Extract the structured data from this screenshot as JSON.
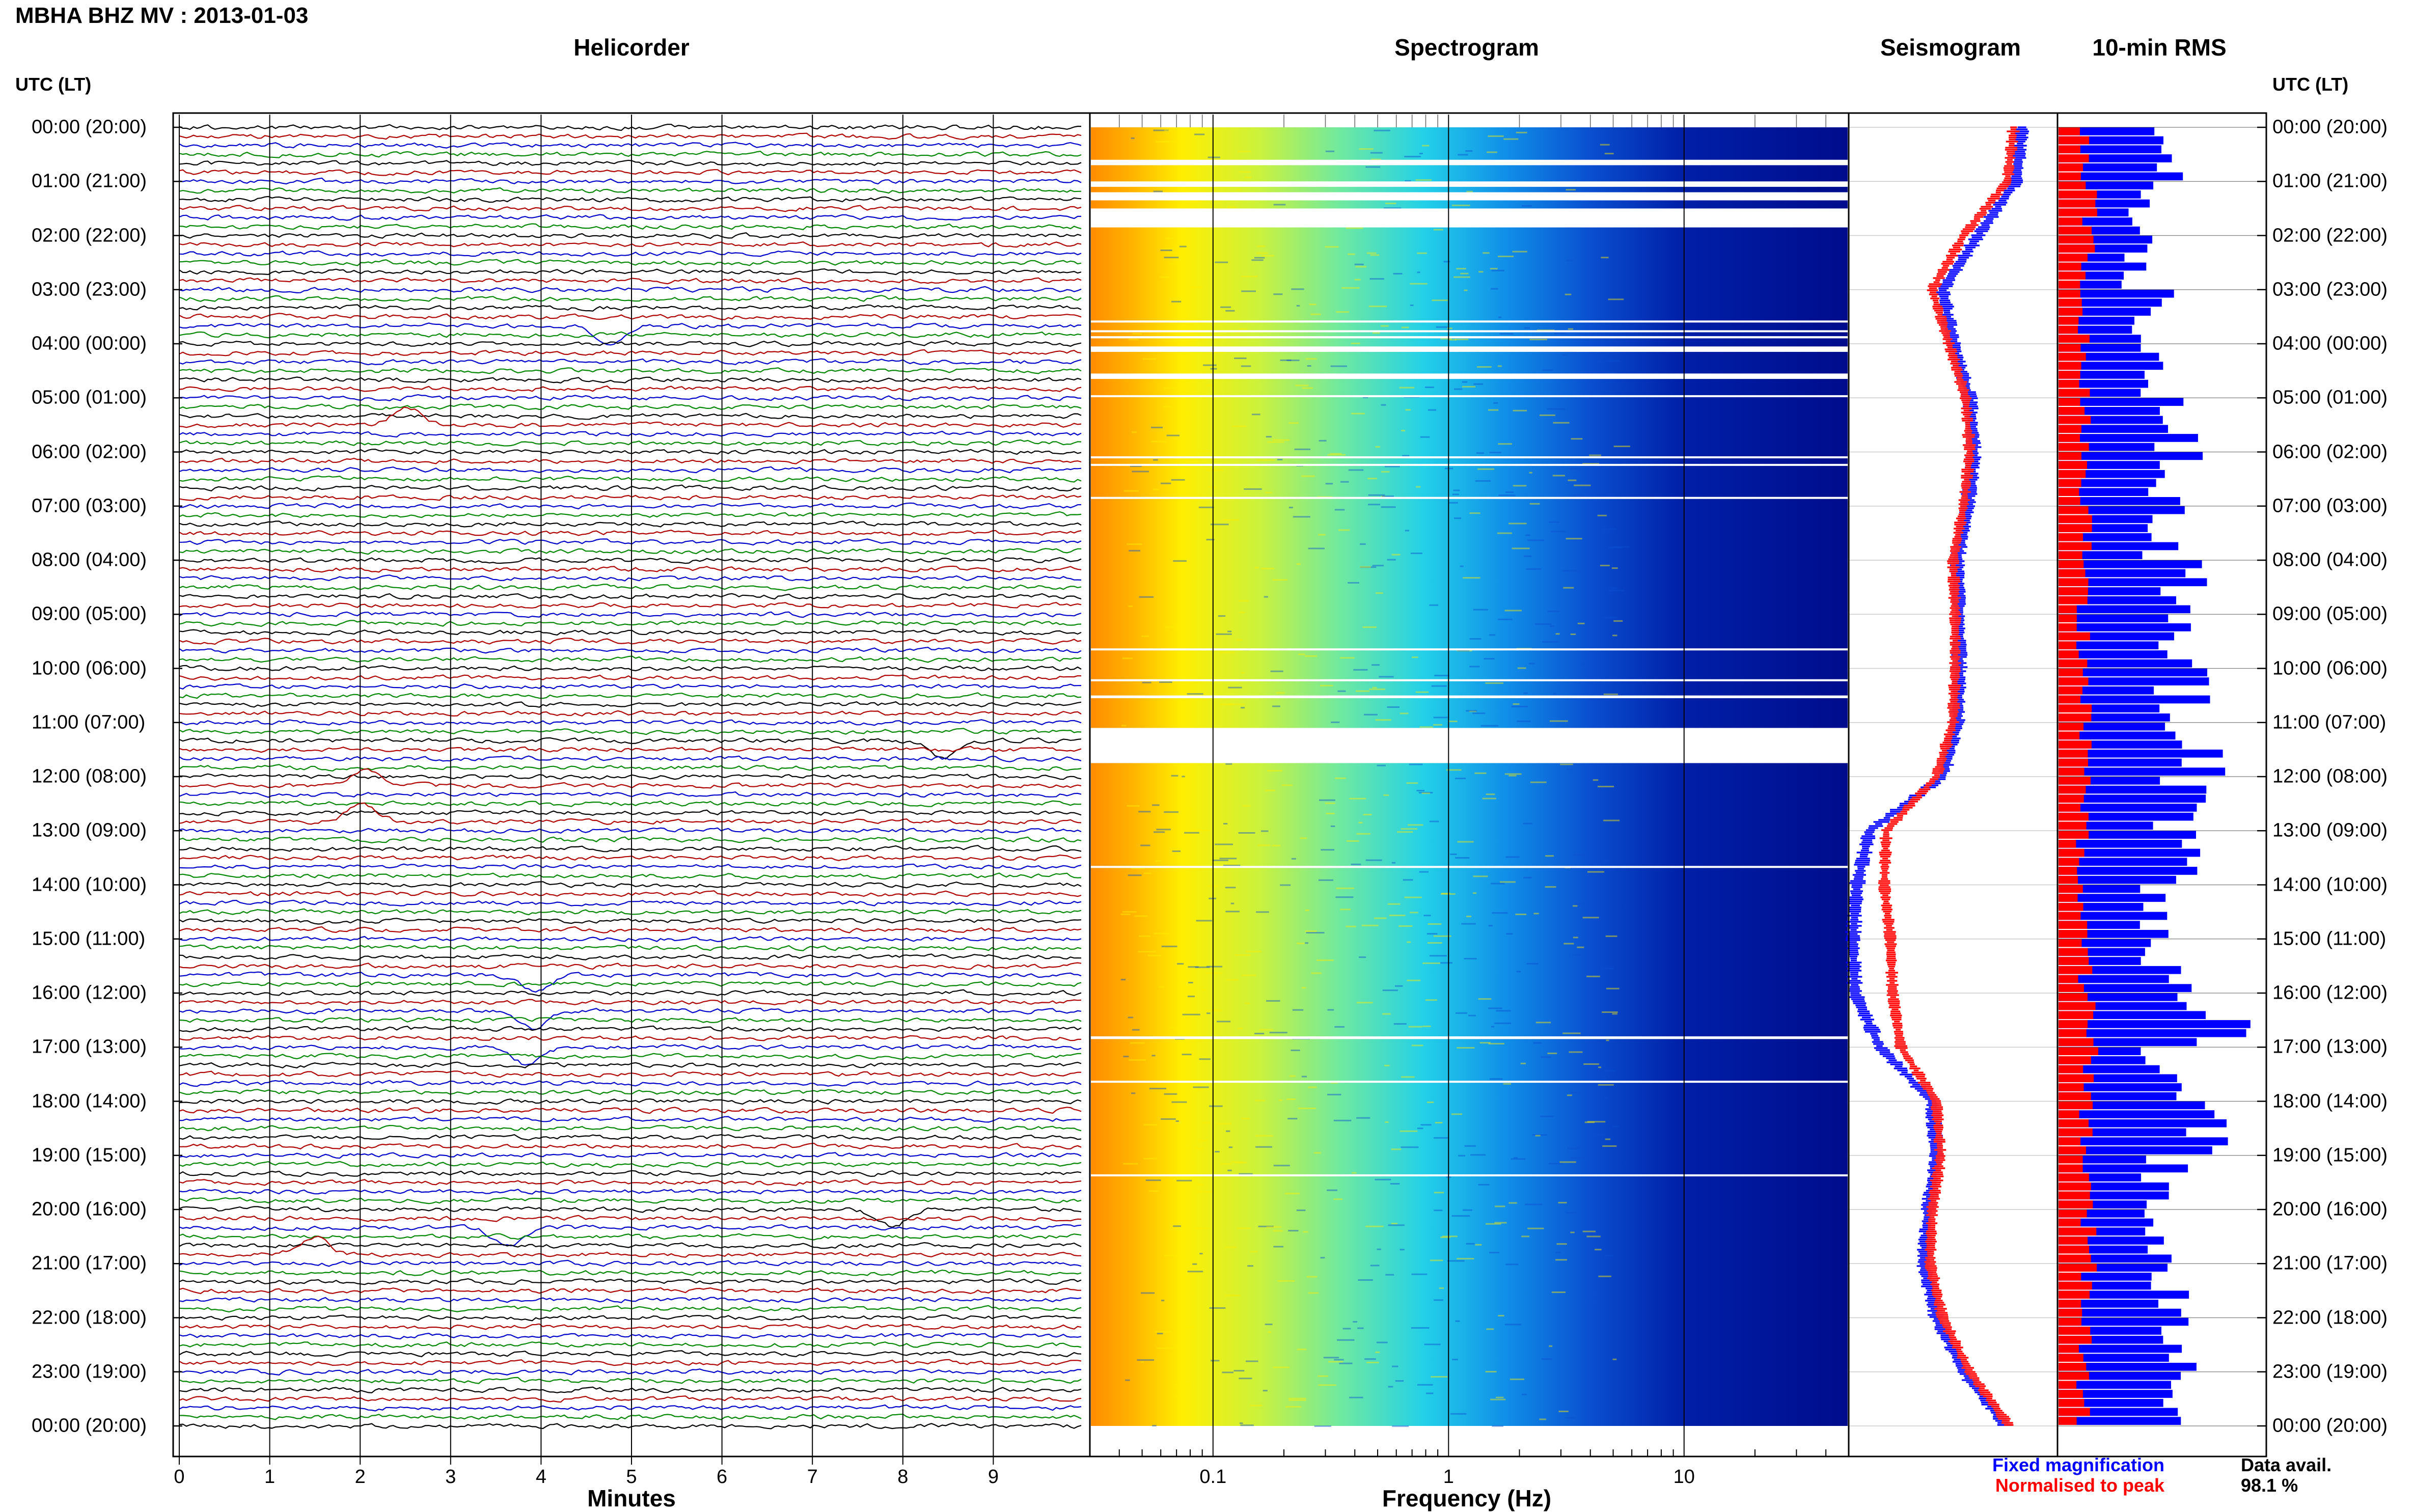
{
  "header": {
    "title": "MBHA BHZ MV : 2013-01-03"
  },
  "panels": {
    "helicorder": "Helicorder",
    "spectrogram": "Spectrogram",
    "seismogram": "Seismogram",
    "rms": "10-min RMS"
  },
  "axes": {
    "time_caption": "UTC (LT)",
    "minutes_label": "Minutes",
    "frequency_label": "Frequency (Hz)"
  },
  "legend": {
    "fixed": "Fixed magnification",
    "normalised": "Normalised to peak",
    "avail_label": "Data avail.",
    "avail_value": "98.1 %"
  },
  "colors": {
    "fixed": "#0000ff",
    "normalised": "#ff0000",
    "trace_cycle": [
      "#000000",
      "#b00000",
      "#0000cc",
      "#008800"
    ]
  },
  "chart_data": [
    {
      "type": "line",
      "title": "Helicorder",
      "xlabel": "Minutes",
      "x_ticks": [
        "0",
        "1",
        "2",
        "3",
        "4",
        "5",
        "6",
        "7",
        "8",
        "9"
      ],
      "xlim": [
        0,
        10
      ],
      "y_ticks": [
        "00:00 (20:00)",
        "01:00 (21:00)",
        "02:00 (22:00)",
        "03:00 (23:00)",
        "04:00 (00:00)",
        "05:00 (01:00)",
        "06:00 (02:00)",
        "07:00 (03:00)",
        "08:00 (04:00)",
        "09:00 (05:00)",
        "10:00 (06:00)",
        "11:00 (07:00)",
        "12:00 (08:00)",
        "13:00 (09:00)",
        "14:00 (10:00)",
        "15:00 (11:00)",
        "16:00 (12:00)",
        "17:00 (13:00)",
        "18:00 (14:00)",
        "19:00 (15:00)",
        "20:00 (16:00)",
        "21:00 (17:00)",
        "22:00 (18:00)",
        "23:00 (19:00)",
        "00:00 (20:00)"
      ],
      "traces_per_hour": 6,
      "events_hours": [
        3.7,
        5.5,
        11.3,
        12.1,
        12.8,
        15.6,
        16.4,
        17.0,
        20.0,
        20.4,
        20.9
      ]
    },
    {
      "type": "heatmap",
      "title": "Spectrogram",
      "xlabel": "Frequency (Hz)",
      "x_ticks": [
        "0.1",
        "1",
        "10"
      ],
      "xlim": [
        0.03,
        50
      ],
      "x_scale": "log",
      "gap_hours": [
        [
          0.6,
          0.7
        ],
        [
          1.0,
          1.1
        ],
        [
          1.2,
          1.35
        ],
        [
          1.5,
          1.85
        ],
        [
          3.57,
          3.6
        ],
        [
          3.75,
          3.78
        ],
        [
          3.86,
          3.9
        ],
        [
          4.05,
          4.15
        ],
        [
          4.55,
          4.65
        ],
        [
          4.95,
          4.97
        ],
        [
          6.08,
          6.1
        ],
        [
          6.22,
          6.24
        ],
        [
          6.83,
          6.85
        ],
        [
          9.63,
          9.66
        ],
        [
          10.2,
          10.23
        ],
        [
          10.5,
          10.55
        ],
        [
          11.1,
          11.75
        ],
        [
          13.65,
          13.68
        ],
        [
          16.8,
          16.85
        ],
        [
          17.62,
          17.65
        ],
        [
          19.35,
          19.38
        ]
      ]
    },
    {
      "type": "line",
      "title": "Seismogram",
      "series": [
        {
          "name": "Fixed magnification",
          "values": [
            0.83,
            0.8,
            0.62,
            0.45,
            0.5,
            0.58,
            0.6,
            0.57,
            0.52,
            0.53,
            0.53,
            0.52,
            0.45,
            0.1,
            0.04,
            0.02,
            0.03,
            0.15,
            0.4,
            0.42,
            0.38,
            0.36,
            0.42,
            0.55,
            0.75
          ]
        },
        {
          "name": "Normalised to peak",
          "values": [
            0.79,
            0.76,
            0.55,
            0.4,
            0.48,
            0.56,
            0.58,
            0.55,
            0.5,
            0.51,
            0.51,
            0.5,
            0.42,
            0.18,
            0.17,
            0.2,
            0.21,
            0.25,
            0.42,
            0.44,
            0.4,
            0.39,
            0.45,
            0.58,
            0.77
          ]
        }
      ]
    },
    {
      "type": "bar",
      "title": "10-min RMS",
      "series": [
        {
          "name": "Fixed magnification",
          "values": [
            0.53,
            0.39,
            0.38,
            0.47,
            0.49,
            0.6,
            0.57,
            0.51,
            0.6,
            0.56,
            0.6,
            0.67,
            0.59,
            0.6,
            0.46,
            0.52,
            0.76,
            0.51,
            0.77,
            0.51,
            0.51,
            0.59,
            0.6,
            0.64
          ]
        },
        {
          "name": "Normalised to peak",
          "values": [
            0.12,
            0.15,
            0.14,
            0.12,
            0.13,
            0.12,
            0.13,
            0.13,
            0.12,
            0.12,
            0.13,
            0.13,
            0.14,
            0.12,
            0.12,
            0.13,
            0.14,
            0.15,
            0.13,
            0.13,
            0.15,
            0.15,
            0.13,
            0.12
          ]
        }
      ]
    }
  ]
}
